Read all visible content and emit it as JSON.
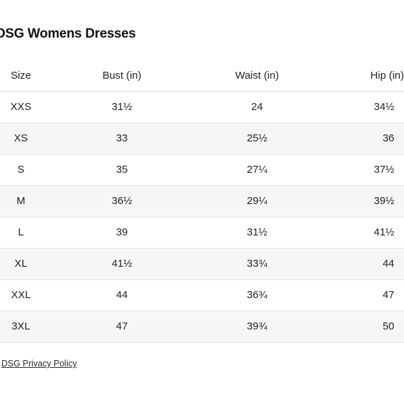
{
  "title": "DSG Womens Dresses",
  "table": {
    "headers": [
      "Size",
      "Bust (in)",
      "Waist (in)",
      "Hip (in)"
    ],
    "rows": [
      [
        "XXS",
        "31½",
        "24",
        "34½"
      ],
      [
        "XS",
        "33",
        "25½",
        "36"
      ],
      [
        "S",
        "35",
        "27¼",
        "37½"
      ],
      [
        "M",
        "36½",
        "29¼",
        "39½"
      ],
      [
        "L",
        "39",
        "31½",
        "41½"
      ],
      [
        "XL",
        "41½",
        "33¾",
        "44"
      ],
      [
        "XXL",
        "44",
        "36¾",
        "47"
      ],
      [
        "3XL",
        "47",
        "39¾",
        "50"
      ]
    ]
  },
  "footer": {
    "link_label": "DSG Privacy Policy"
  }
}
